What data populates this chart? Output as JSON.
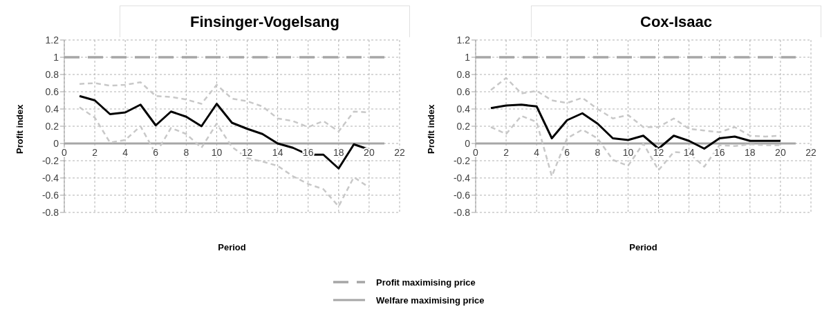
{
  "chart_data": [
    {
      "type": "line",
      "title": "Finsinger-Vogelsang",
      "xlabel": "Period",
      "ylabel": "Profit index",
      "xlim": [
        0,
        22
      ],
      "xticks": [
        0,
        2,
        4,
        6,
        8,
        10,
        12,
        14,
        16,
        18,
        20,
        22
      ],
      "ylim": [
        -0.8,
        1.2
      ],
      "yticks": [
        -0.8,
        -0.6,
        -0.4,
        -0.2,
        0,
        0.2,
        0.4,
        0.6,
        0.8,
        1,
        1.2
      ],
      "grid": true,
      "legend": "bottom",
      "series": [
        {
          "name": "Profit maximising price",
          "color": "#a6a6a6",
          "line_style": "dashed",
          "x": [
            0,
            21
          ],
          "values": [
            1,
            1
          ]
        },
        {
          "name": "Welfare maximising price",
          "color": "#a6a6a6",
          "line_style": "solid",
          "x": [
            0,
            21
          ],
          "values": [
            0,
            0
          ]
        },
        {
          "color": "#c8c8c8",
          "line_style": "dotted",
          "x": [
            1,
            2,
            3,
            4,
            5,
            6,
            7,
            8,
            9,
            10,
            11,
            12,
            13,
            14,
            15,
            16,
            17,
            18,
            19,
            20
          ],
          "values": [
            0.69,
            0.7,
            0.67,
            0.68,
            0.71,
            0.55,
            0.54,
            0.51,
            0.46,
            0.68,
            0.52,
            0.49,
            0.43,
            0.29,
            0.26,
            0.19,
            0.26,
            0.14,
            0.37,
            0.36
          ]
        },
        {
          "color": "#c8c8c8",
          "line_style": "dotted",
          "x": [
            1,
            2,
            3,
            4,
            5,
            6,
            7,
            8,
            9,
            10,
            11,
            12,
            13,
            14,
            15,
            16,
            17,
            18,
            19,
            20
          ],
          "values": [
            0.42,
            0.3,
            0.01,
            0.04,
            0.2,
            -0.12,
            0.18,
            0.11,
            -0.05,
            0.23,
            -0.04,
            -0.17,
            -0.21,
            -0.26,
            -0.38,
            -0.47,
            -0.53,
            -0.73,
            -0.39,
            -0.51
          ]
        },
        {
          "color": "#000000",
          "line_style": "solid",
          "x": [
            1,
            2,
            3,
            4,
            5,
            6,
            7,
            8,
            9,
            10,
            11,
            12,
            13,
            14,
            15,
            16,
            17,
            18,
            19,
            20
          ],
          "values": [
            0.55,
            0.5,
            0.34,
            0.36,
            0.45,
            0.21,
            0.37,
            0.31,
            0.2,
            0.46,
            0.24,
            0.17,
            0.11,
            0.0,
            -0.05,
            -0.13,
            -0.13,
            -0.29,
            -0.01,
            -0.07
          ]
        }
      ]
    },
    {
      "type": "line",
      "title": "Cox-Isaac",
      "xlabel": "Period",
      "ylabel": "Profit index",
      "xlim": [
        0,
        22
      ],
      "xticks": [
        0,
        2,
        4,
        6,
        8,
        10,
        12,
        14,
        16,
        18,
        20,
        22
      ],
      "ylim": [
        -0.8,
        1.2
      ],
      "yticks": [
        -0.8,
        -0.6,
        -0.4,
        -0.2,
        0,
        0.2,
        0.4,
        0.6,
        0.8,
        1,
        1.2
      ],
      "grid": true,
      "series": [
        {
          "color": "#a6a6a6",
          "line_style": "dashed",
          "x": [
            0,
            21
          ],
          "values": [
            1,
            1
          ]
        },
        {
          "color": "#a6a6a6",
          "line_style": "solid",
          "x": [
            0,
            21
          ],
          "values": [
            0,
            0
          ]
        },
        {
          "color": "#c8c8c8",
          "line_style": "dotted",
          "x": [
            1,
            2,
            3,
            4,
            5,
            6,
            7,
            8,
            9,
            10,
            11,
            12,
            13,
            14,
            15,
            16,
            17,
            18,
            19,
            20
          ],
          "values": [
            0.62,
            0.76,
            0.58,
            0.61,
            0.5,
            0.47,
            0.53,
            0.4,
            0.29,
            0.33,
            0.19,
            0.19,
            0.29,
            0.17,
            0.15,
            0.13,
            0.19,
            0.09,
            0.08,
            0.09
          ]
        },
        {
          "color": "#c8c8c8",
          "line_style": "dotted",
          "x": [
            1,
            2,
            3,
            4,
            5,
            6,
            7,
            8,
            9,
            10,
            11,
            12,
            13,
            14,
            15,
            16,
            17,
            18,
            19,
            20
          ],
          "values": [
            0.19,
            0.11,
            0.32,
            0.25,
            -0.38,
            0.06,
            0.16,
            0.06,
            -0.19,
            -0.26,
            0.0,
            -0.31,
            -0.1,
            -0.11,
            -0.27,
            -0.02,
            -0.03,
            -0.01,
            -0.02,
            -0.02
          ]
        },
        {
          "color": "#000000",
          "line_style": "solid",
          "x": [
            1,
            2,
            3,
            4,
            5,
            6,
            7,
            8,
            9,
            10,
            11,
            12,
            13,
            14,
            15,
            16,
            17,
            18,
            19,
            20
          ],
          "values": [
            0.41,
            0.44,
            0.45,
            0.43,
            0.06,
            0.27,
            0.35,
            0.23,
            0.06,
            0.04,
            0.09,
            -0.06,
            0.09,
            0.03,
            -0.06,
            0.06,
            0.08,
            0.03,
            0.03,
            0.03
          ]
        }
      ]
    }
  ]
}
